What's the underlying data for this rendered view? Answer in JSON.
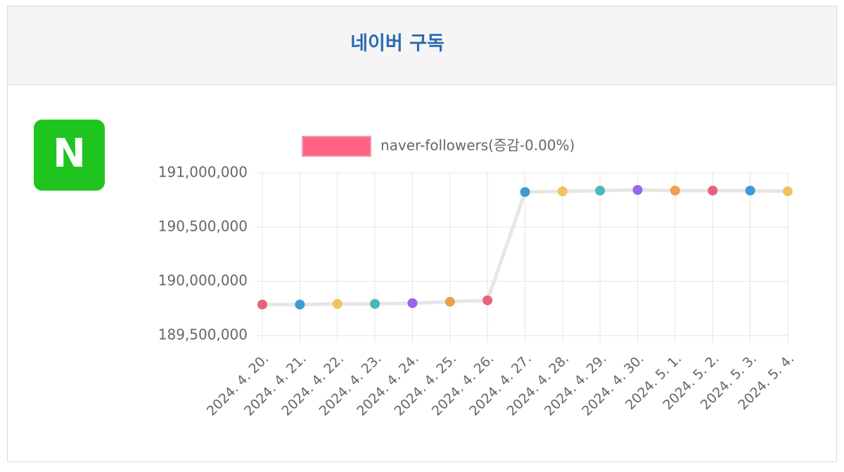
{
  "header": {
    "title": "네이버 구독"
  },
  "icon": {
    "label": "N"
  },
  "chart_data": {
    "type": "line",
    "categories": [
      "2024. 4. 20.",
      "2024. 4. 21.",
      "2024. 4. 22.",
      "2024. 4. 23.",
      "2024. 4. 24.",
      "2024. 4. 25.",
      "2024. 4. 26.",
      "2024. 4. 27.",
      "2024. 4. 28.",
      "2024. 4. 29.",
      "2024. 4. 30.",
      "2024. 5. 1.",
      "2024. 5. 2.",
      "2024. 5. 3.",
      "2024. 5. 4."
    ],
    "series": [
      {
        "name": "naver-followers(증감-0.00%)",
        "color": "#e6e6e6",
        "legend_color": "#ff6384",
        "point_colors": [
          "#e8627c",
          "#3f9ad8",
          "#f1c35e",
          "#4bb8b8",
          "#9966ee",
          "#f0a04a"
        ],
        "values": [
          189786000,
          189786000,
          189792000,
          189792000,
          189799000,
          189812000,
          189825000,
          190825000,
          190831000,
          190838000,
          190844000,
          190838000,
          190838000,
          190838000,
          190831000
        ]
      }
    ],
    "ylim": [
      189500000,
      191000000
    ],
    "yticks": [
      {
        "value": 189500000,
        "label": "189,500,000"
      },
      {
        "value": 190000000,
        "label": "190,000,000"
      },
      {
        "value": 190500000,
        "label": "190,500,000"
      },
      {
        "value": 191000000,
        "label": "191,000,000"
      }
    ],
    "grid": true,
    "legend": "top"
  }
}
